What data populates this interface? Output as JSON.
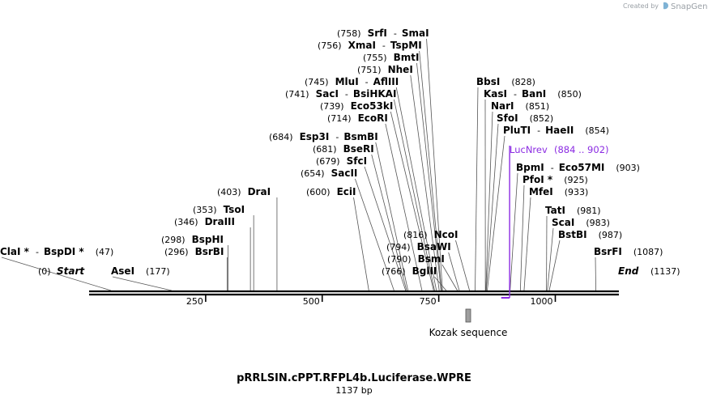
{
  "credit": {
    "prefix": "Created by",
    "brand": "SnapGene"
  },
  "sequence": {
    "name": "pRRLSIN.cPPT.RFPL4b.Luciferase.WPRE",
    "length_label": "1137 bp",
    "length": 1137
  },
  "ends": {
    "start_pos": "(0)",
    "start_label": "Start",
    "end_label": "End",
    "end_pos": "(1137)"
  },
  "axis": {
    "ticks": [
      {
        "value": 250,
        "label": "250"
      },
      {
        "value": 500,
        "label": "500"
      },
      {
        "value": 750,
        "label": "750"
      },
      {
        "value": 1000,
        "label": "1000"
      }
    ]
  },
  "sites": [
    {
      "pos": 47,
      "pos_label": "(47)",
      "enz1": "ClaI *",
      "enz2": "BspDI *",
      "side": "right"
    },
    {
      "pos": 177,
      "pos_label": "(177)",
      "enz1": "AseI",
      "enz2": "",
      "side": "right"
    },
    {
      "pos": 296,
      "pos_label": "(296)",
      "enz1": "BsrBI",
      "enz2": "",
      "side": "left"
    },
    {
      "pos": 298,
      "pos_label": "(298)",
      "enz1": "BspHI",
      "enz2": "",
      "side": "left"
    },
    {
      "pos": 346,
      "pos_label": "(346)",
      "enz1": "DraIII",
      "enz2": "",
      "side": "left"
    },
    {
      "pos": 353,
      "pos_label": "(353)",
      "enz1": "TsoI",
      "enz2": "",
      "side": "left"
    },
    {
      "pos": 403,
      "pos_label": "(403)",
      "enz1": "DraI",
      "enz2": "",
      "side": "left"
    },
    {
      "pos": 600,
      "pos_label": "(600)",
      "enz1": "EciI",
      "enz2": "",
      "side": "left"
    },
    {
      "pos": 654,
      "pos_label": "(654)",
      "enz1": "SacII",
      "enz2": "",
      "side": "left"
    },
    {
      "pos": 679,
      "pos_label": "(679)",
      "enz1": "SfcI",
      "enz2": "",
      "side": "left"
    },
    {
      "pos": 681,
      "pos_label": "(681)",
      "enz1": "BseRI",
      "enz2": "",
      "side": "left"
    },
    {
      "pos": 684,
      "pos_label": "(684)",
      "enz1": "Esp3I",
      "enz2": "BsmBI",
      "side": "left"
    },
    {
      "pos": 714,
      "pos_label": "(714)",
      "enz1": "EcoRI",
      "enz2": "",
      "side": "left"
    },
    {
      "pos": 739,
      "pos_label": "(739)",
      "enz1": "Eco53kI",
      "enz2": "",
      "side": "left"
    },
    {
      "pos": 741,
      "pos_label": "(741)",
      "enz1": "SacI",
      "enz2": "BsiHKAI",
      "side": "left"
    },
    {
      "pos": 745,
      "pos_label": "(745)",
      "enz1": "MluI",
      "enz2": "AflIII",
      "side": "left"
    },
    {
      "pos": 751,
      "pos_label": "(751)",
      "enz1": "NheI",
      "enz2": "",
      "side": "left"
    },
    {
      "pos": 755,
      "pos_label": "(755)",
      "enz1": "BmtI",
      "enz2": "",
      "side": "left"
    },
    {
      "pos": 756,
      "pos_label": "(756)",
      "enz1": "XmaI",
      "enz2": "TspMI",
      "side": "left"
    },
    {
      "pos": 758,
      "pos_label": "(758)",
      "enz1": "SrfI",
      "enz2": "SmaI",
      "side": "left"
    },
    {
      "pos": 766,
      "pos_label": "(766)",
      "enz1": "BglII",
      "enz2": "",
      "side": "left"
    },
    {
      "pos": 790,
      "pos_label": "(790)",
      "enz1": "BsmI",
      "enz2": "",
      "side": "left"
    },
    {
      "pos": 794,
      "pos_label": "(794)",
      "enz1": "BsaWI",
      "enz2": "",
      "side": "left"
    },
    {
      "pos": 816,
      "pos_label": "(816)",
      "enz1": "NcoI",
      "enz2": "",
      "side": "left"
    },
    {
      "pos": 828,
      "pos_label": "(828)",
      "enz1": "BbsI",
      "enz2": "",
      "side": "right"
    },
    {
      "pos": 850,
      "pos_label": "(850)",
      "enz1": "KasI",
      "enz2": "BanI",
      "side": "right"
    },
    {
      "pos": 851,
      "pos_label": "(851)",
      "enz1": "NarI",
      "enz2": "",
      "side": "right"
    },
    {
      "pos": 852,
      "pos_label": "(852)",
      "enz1": "SfoI",
      "enz2": "",
      "side": "right"
    },
    {
      "pos": 854,
      "pos_label": "(854)",
      "enz1": "PluTI",
      "enz2": "HaeII",
      "side": "right"
    },
    {
      "pos": 903,
      "pos_label": "(903)",
      "enz1": "BpmI",
      "enz2": "Eco57MI",
      "side": "right"
    },
    {
      "pos": 925,
      "pos_label": "(925)",
      "enz1": "PfoI *",
      "enz2": "",
      "side": "right"
    },
    {
      "pos": 933,
      "pos_label": "(933)",
      "enz1": "MfeI",
      "enz2": "",
      "side": "right"
    },
    {
      "pos": 981,
      "pos_label": "(981)",
      "enz1": "TatI",
      "enz2": "",
      "side": "right"
    },
    {
      "pos": 983,
      "pos_label": "(983)",
      "enz1": "ScaI",
      "enz2": "",
      "side": "right"
    },
    {
      "pos": 987,
      "pos_label": "(987)",
      "enz1": "BstBI",
      "enz2": "",
      "side": "right"
    },
    {
      "pos": 1087,
      "pos_label": "(1087)",
      "enz1": "BsrFI",
      "enz2": "",
      "side": "right"
    }
  ],
  "primer": {
    "name": "LucNrev",
    "range_label": "(884 .. 902)",
    "start": 884,
    "end": 902,
    "color": "#8b2be2"
  },
  "feature": {
    "name": "Kozak sequence",
    "color": "#9e9e9e"
  }
}
